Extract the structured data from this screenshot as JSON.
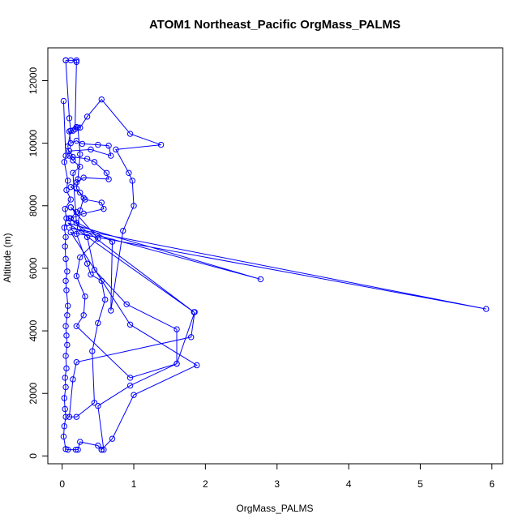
{
  "chart_data": {
    "type": "line",
    "title": "ATOM1 Northeast_Pacific OrgMass_PALMS",
    "xlabel": "OrgMass_PALMS",
    "ylabel": "Altitude (m)",
    "xlim": [
      -0.2,
      6.15
    ],
    "ylim": [
      -250,
      13050
    ],
    "xticks": [
      0,
      1,
      2,
      3,
      4,
      5,
      6
    ],
    "yticks": [
      0,
      2000,
      4000,
      6000,
      8000,
      10000,
      12000
    ],
    "grid": false,
    "series_color": "#0000ff",
    "series": [
      {
        "points": [
          [
            0.02,
            11350
          ],
          [
            0.05,
            9600
          ],
          [
            0.03,
            9400
          ],
          [
            0.08,
            8800
          ],
          [
            0.06,
            8500
          ],
          [
            0.12,
            8200
          ],
          [
            0.04,
            7900
          ],
          [
            0.06,
            7600
          ],
          [
            0.03,
            7300
          ],
          [
            0.05,
            7000
          ],
          [
            0.04,
            6700
          ],
          [
            0.05,
            6300
          ],
          [
            0.07,
            5900
          ],
          [
            0.05,
            5600
          ],
          [
            0.06,
            5300
          ],
          [
            0.08,
            4800
          ],
          [
            0.07,
            4500
          ],
          [
            0.05,
            4150
          ],
          [
            0.06,
            3850
          ],
          [
            0.07,
            3550
          ],
          [
            0.05,
            3200
          ],
          [
            0.06,
            2800
          ],
          [
            0.04,
            2500
          ],
          [
            0.05,
            2200
          ],
          [
            0.03,
            1850
          ],
          [
            0.04,
            1500
          ],
          [
            0.05,
            1250
          ],
          [
            0.03,
            950
          ],
          [
            0.02,
            620
          ],
          [
            0.05,
            220
          ],
          [
            0.08,
            200
          ],
          [
            0.19,
            200
          ],
          [
            0.22,
            200
          ],
          [
            0.25,
            450
          ],
          [
            0.5,
            330
          ],
          [
            0.55,
            200
          ]
        ]
      },
      {
        "points": [
          [
            0.55,
            200
          ],
          [
            0.7,
            550
          ],
          [
            1.0,
            1950
          ],
          [
            1.88,
            2900
          ],
          [
            0.95,
            4200
          ],
          [
            0.12,
            7150
          ],
          [
            5.92,
            4700
          ],
          [
            0.1,
            7300
          ],
          [
            2.77,
            5650
          ],
          [
            0.08,
            7450
          ],
          [
            1.84,
            4600
          ],
          [
            0.1,
            7600
          ],
          [
            0.7,
            6850
          ],
          [
            0.68,
            4650
          ],
          [
            0.85,
            7200
          ],
          [
            1.0,
            8000
          ],
          [
            0.98,
            8800
          ],
          [
            0.93,
            9050
          ],
          [
            0.75,
            9800
          ],
          [
            1.38,
            9950
          ],
          [
            0.95,
            10300
          ],
          [
            0.55,
            11400
          ],
          [
            0.35,
            10850
          ],
          [
            0.25,
            10500
          ],
          [
            0.2,
            10520
          ],
          [
            0.15,
            10400
          ],
          [
            0.1,
            10380
          ],
          [
            0.12,
            10000
          ],
          [
            0.2,
            10080
          ],
          [
            0.28,
            9980
          ],
          [
            0.5,
            9950
          ],
          [
            0.65,
            9920
          ],
          [
            0.68,
            9600
          ],
          [
            0.4,
            9800
          ],
          [
            0.1,
            9750
          ],
          [
            0.15,
            9560
          ],
          [
            0.35,
            9500
          ],
          [
            0.45,
            9400
          ],
          [
            0.62,
            9050
          ],
          [
            0.65,
            8850
          ],
          [
            0.3,
            8900
          ],
          [
            0.2,
            8750
          ],
          [
            0.12,
            8600
          ],
          [
            0.25,
            8420
          ],
          [
            0.32,
            8200
          ],
          [
            0.55,
            8100
          ],
          [
            0.58,
            7900
          ],
          [
            0.3,
            7750
          ],
          [
            0.12,
            7600
          ],
          [
            0.2,
            7800
          ],
          [
            0.12,
            7950
          ]
        ]
      },
      {
        "points": [
          [
            0.12,
            7950
          ],
          [
            0.5,
            6950
          ],
          [
            0.25,
            6350
          ],
          [
            0.2,
            5750
          ],
          [
            0.32,
            5100
          ],
          [
            0.3,
            4500
          ],
          [
            0.2,
            4150
          ],
          [
            0.95,
            2500
          ],
          [
            1.6,
            2950
          ],
          [
            1.6,
            4050
          ],
          [
            0.9,
            4850
          ],
          [
            0.45,
            5950
          ],
          [
            0.35,
            7000
          ],
          [
            0.2,
            7450
          ],
          [
            0.15,
            9050
          ],
          [
            0.25,
            9250
          ],
          [
            0.15,
            9450
          ],
          [
            0.1,
            9600
          ],
          [
            0.08,
            9900
          ],
          [
            0.12,
            10400
          ],
          [
            0.1,
            10800
          ],
          [
            0.05,
            12650
          ]
        ]
      },
      {
        "points": [
          [
            0.05,
            12650
          ],
          [
            0.12,
            12650
          ],
          [
            0.2,
            12650
          ],
          [
            0.2,
            12600
          ],
          [
            0.18,
            10450
          ],
          [
            0.22,
            10500
          ],
          [
            0.25,
            9650
          ],
          [
            0.22,
            8850
          ],
          [
            0.2,
            8550
          ],
          [
            0.3,
            8250
          ],
          [
            0.25,
            7850
          ],
          [
            0.2,
            7100
          ],
          [
            0.35,
            6150
          ],
          [
            0.4,
            5800
          ],
          [
            0.55,
            5600
          ],
          [
            0.6,
            5000
          ],
          [
            0.5,
            4250
          ],
          [
            0.42,
            3350
          ],
          [
            0.45,
            1700
          ],
          [
            0.2,
            1250
          ],
          [
            0.1,
            1250
          ],
          [
            0.15,
            2450
          ],
          [
            0.2,
            3000
          ],
          [
            1.8,
            3800
          ],
          [
            1.85,
            4600
          ],
          [
            1.6,
            2950
          ],
          [
            0.95,
            2250
          ],
          [
            0.5,
            1600
          ],
          [
            0.58,
            200
          ]
        ]
      }
    ]
  }
}
